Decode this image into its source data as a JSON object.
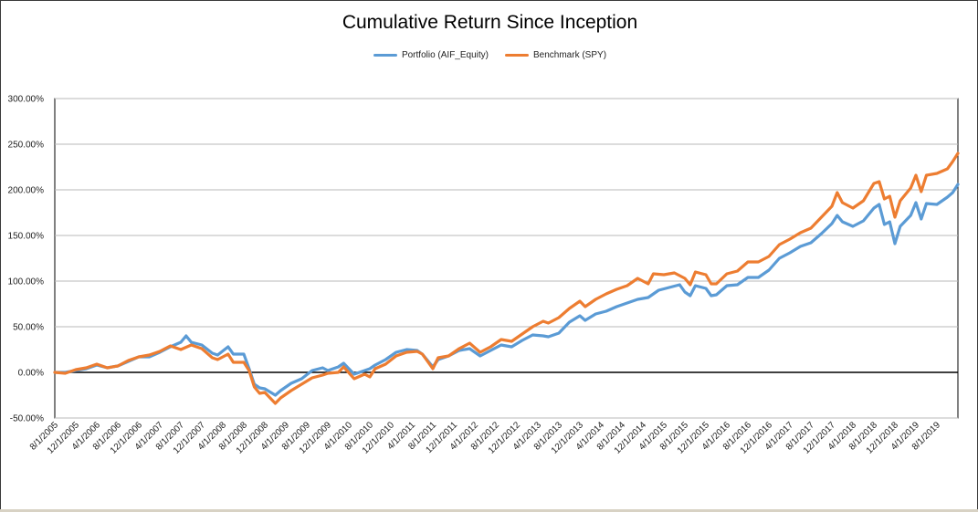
{
  "chart_data": {
    "type": "line",
    "title": "Cumulative Return Since Inception",
    "xlabel": "",
    "ylabel": "",
    "ylim": [
      -50,
      300
    ],
    "y_ticks": [
      300,
      250,
      200,
      150,
      100,
      50,
      0,
      -50
    ],
    "y_tick_labels": [
      "300.00%",
      "250.00%",
      "200.00%",
      "150.00%",
      "100.00%",
      "50.00%",
      "0.00%",
      "-50.00%"
    ],
    "x_start": "2005-08",
    "x_end": "2019-12",
    "x_tick_labels": [
      "8/1/2005",
      "12/1/2005",
      "4/1/2006",
      "8/1/2006",
      "12/1/2006",
      "4/1/2007",
      "8/1/2007",
      "12/1/2007",
      "4/1/2008",
      "8/1/2008",
      "12/1/2008",
      "4/1/2009",
      "8/1/2009",
      "12/1/2009",
      "4/1/2010",
      "8/1/2010",
      "12/1/2010",
      "4/1/2011",
      "8/1/2011",
      "12/1/2011",
      "4/1/2012",
      "8/1/2012",
      "12/1/2012",
      "4/1/2013",
      "8/1/2013",
      "12/1/2013",
      "4/1/2014",
      "8/1/2014",
      "12/1/2014",
      "4/1/2015",
      "8/1/2015",
      "12/1/2015",
      "4/1/2016",
      "8/1/2016",
      "12/1/2016",
      "4/1/2017",
      "8/1/2017",
      "12/1/2017",
      "4/1/2018",
      "8/1/2018",
      "12/1/2018",
      "4/1/2019",
      "8/1/2019"
    ],
    "legend_position": "top",
    "grid": true,
    "series": [
      {
        "name": "Portfolio (AIF_Equity)",
        "color": "#5b9bd5",
        "points": [
          [
            "2005-08",
            0
          ],
          [
            "2005-10",
            0
          ],
          [
            "2005-12",
            2
          ],
          [
            "2006-02",
            4
          ],
          [
            "2006-04",
            8
          ],
          [
            "2006-06",
            5
          ],
          [
            "2006-08",
            7
          ],
          [
            "2006-10",
            12
          ],
          [
            "2006-12",
            17
          ],
          [
            "2007-02",
            17
          ],
          [
            "2007-04",
            22
          ],
          [
            "2007-06",
            28
          ],
          [
            "2007-08",
            33
          ],
          [
            "2007-09",
            40
          ],
          [
            "2007-10",
            33
          ],
          [
            "2007-12",
            30
          ],
          [
            "2008-02",
            21
          ],
          [
            "2008-03",
            19
          ],
          [
            "2008-05",
            28
          ],
          [
            "2008-06",
            20
          ],
          [
            "2008-08",
            20
          ],
          [
            "2008-09",
            4
          ],
          [
            "2008-10",
            -13
          ],
          [
            "2008-11",
            -17
          ],
          [
            "2008-12",
            -18
          ],
          [
            "2009-02",
            -25
          ],
          [
            "2009-03",
            -20
          ],
          [
            "2009-05",
            -12
          ],
          [
            "2009-07",
            -7
          ],
          [
            "2009-09",
            2
          ],
          [
            "2009-11",
            5
          ],
          [
            "2009-12",
            2
          ],
          [
            "2010-02",
            6
          ],
          [
            "2010-03",
            10
          ],
          [
            "2010-05",
            -2
          ],
          [
            "2010-07",
            2
          ],
          [
            "2010-08",
            4
          ],
          [
            "2010-09",
            8
          ],
          [
            "2010-11",
            14
          ],
          [
            "2011-01",
            22
          ],
          [
            "2011-03",
            25
          ],
          [
            "2011-05",
            24
          ],
          [
            "2011-06",
            20
          ],
          [
            "2011-08",
            6
          ],
          [
            "2011-09",
            14
          ],
          [
            "2011-11",
            18
          ],
          [
            "2012-01",
            24
          ],
          [
            "2012-03",
            26
          ],
          [
            "2012-05",
            18
          ],
          [
            "2012-07",
            24
          ],
          [
            "2012-09",
            30
          ],
          [
            "2012-11",
            28
          ],
          [
            "2013-01",
            35
          ],
          [
            "2013-03",
            41
          ],
          [
            "2013-05",
            40
          ],
          [
            "2013-06",
            39
          ],
          [
            "2013-08",
            43
          ],
          [
            "2013-10",
            55
          ],
          [
            "2013-12",
            62
          ],
          [
            "2014-01",
            57
          ],
          [
            "2014-03",
            64
          ],
          [
            "2014-05",
            67
          ],
          [
            "2014-07",
            72
          ],
          [
            "2014-09",
            76
          ],
          [
            "2014-11",
            80
          ],
          [
            "2015-01",
            82
          ],
          [
            "2015-03",
            90
          ],
          [
            "2015-05",
            93
          ],
          [
            "2015-07",
            96
          ],
          [
            "2015-08",
            88
          ],
          [
            "2015-09",
            84
          ],
          [
            "2015-10",
            95
          ],
          [
            "2015-12",
            92
          ],
          [
            "2016-01",
            84
          ],
          [
            "2016-02",
            85
          ],
          [
            "2016-04",
            95
          ],
          [
            "2016-06",
            96
          ],
          [
            "2016-08",
            104
          ],
          [
            "2016-10",
            104
          ],
          [
            "2016-12",
            112
          ],
          [
            "2017-02",
            125
          ],
          [
            "2017-04",
            131
          ],
          [
            "2017-06",
            138
          ],
          [
            "2017-08",
            142
          ],
          [
            "2017-10",
            152
          ],
          [
            "2017-12",
            163
          ],
          [
            "2018-01",
            172
          ],
          [
            "2018-02",
            165
          ],
          [
            "2018-04",
            160
          ],
          [
            "2018-06",
            166
          ],
          [
            "2018-08",
            180
          ],
          [
            "2018-09",
            184
          ],
          [
            "2018-10",
            162
          ],
          [
            "2018-11",
            165
          ],
          [
            "2018-12",
            141
          ],
          [
            "2019-01",
            160
          ],
          [
            "2019-03",
            172
          ],
          [
            "2019-04",
            186
          ],
          [
            "2019-05",
            168
          ],
          [
            "2019-06",
            185
          ],
          [
            "2019-08",
            184
          ],
          [
            "2019-10",
            192
          ],
          [
            "2019-11",
            197
          ],
          [
            "2019-12",
            206
          ]
        ]
      },
      {
        "name": "Benchmark (SPY)",
        "color": "#ed7d31",
        "points": [
          [
            "2005-08",
            0
          ],
          [
            "2005-10",
            -1
          ],
          [
            "2005-12",
            3
          ],
          [
            "2006-02",
            5
          ],
          [
            "2006-04",
            9
          ],
          [
            "2006-06",
            5
          ],
          [
            "2006-08",
            7
          ],
          [
            "2006-10",
            13
          ],
          [
            "2006-12",
            17
          ],
          [
            "2007-02",
            19
          ],
          [
            "2007-04",
            23
          ],
          [
            "2007-06",
            29
          ],
          [
            "2007-08",
            25
          ],
          [
            "2007-10",
            30
          ],
          [
            "2007-12",
            26
          ],
          [
            "2008-02",
            16
          ],
          [
            "2008-03",
            14
          ],
          [
            "2008-05",
            20
          ],
          [
            "2008-06",
            11
          ],
          [
            "2008-08",
            11
          ],
          [
            "2008-09",
            2
          ],
          [
            "2008-10",
            -16
          ],
          [
            "2008-11",
            -23
          ],
          [
            "2008-12",
            -22
          ],
          [
            "2009-02",
            -34
          ],
          [
            "2009-03",
            -28
          ],
          [
            "2009-05",
            -20
          ],
          [
            "2009-07",
            -13
          ],
          [
            "2009-09",
            -6
          ],
          [
            "2009-11",
            -3
          ],
          [
            "2009-12",
            -1
          ],
          [
            "2010-02",
            0
          ],
          [
            "2010-03",
            6
          ],
          [
            "2010-05",
            -7
          ],
          [
            "2010-07",
            -2
          ],
          [
            "2010-08",
            -5
          ],
          [
            "2010-09",
            4
          ],
          [
            "2010-11",
            9
          ],
          [
            "2011-01",
            18
          ],
          [
            "2011-03",
            22
          ],
          [
            "2011-05",
            23
          ],
          [
            "2011-06",
            20
          ],
          [
            "2011-08",
            4
          ],
          [
            "2011-09",
            16
          ],
          [
            "2011-11",
            18
          ],
          [
            "2012-01",
            26
          ],
          [
            "2012-03",
            32
          ],
          [
            "2012-05",
            22
          ],
          [
            "2012-07",
            28
          ],
          [
            "2012-09",
            36
          ],
          [
            "2012-11",
            34
          ],
          [
            "2013-01",
            42
          ],
          [
            "2013-03",
            50
          ],
          [
            "2013-05",
            56
          ],
          [
            "2013-06",
            54
          ],
          [
            "2013-08",
            60
          ],
          [
            "2013-10",
            70
          ],
          [
            "2013-12",
            78
          ],
          [
            "2014-01",
            72
          ],
          [
            "2014-03",
            80
          ],
          [
            "2014-05",
            86
          ],
          [
            "2014-07",
            91
          ],
          [
            "2014-09",
            95
          ],
          [
            "2014-11",
            103
          ],
          [
            "2015-01",
            97
          ],
          [
            "2015-02",
            108
          ],
          [
            "2015-04",
            107
          ],
          [
            "2015-06",
            109
          ],
          [
            "2015-08",
            103
          ],
          [
            "2015-09",
            96
          ],
          [
            "2015-10",
            110
          ],
          [
            "2015-12",
            107
          ],
          [
            "2016-01",
            97
          ],
          [
            "2016-02",
            97
          ],
          [
            "2016-04",
            108
          ],
          [
            "2016-06",
            111
          ],
          [
            "2016-08",
            121
          ],
          [
            "2016-10",
            121
          ],
          [
            "2016-12",
            127
          ],
          [
            "2017-02",
            140
          ],
          [
            "2017-04",
            146
          ],
          [
            "2017-06",
            153
          ],
          [
            "2017-08",
            158
          ],
          [
            "2017-10",
            170
          ],
          [
            "2017-12",
            182
          ],
          [
            "2018-01",
            197
          ],
          [
            "2018-02",
            186
          ],
          [
            "2018-04",
            180
          ],
          [
            "2018-06",
            188
          ],
          [
            "2018-08",
            207
          ],
          [
            "2018-09",
            209
          ],
          [
            "2018-10",
            190
          ],
          [
            "2018-11",
            193
          ],
          [
            "2018-12",
            170
          ],
          [
            "2019-01",
            188
          ],
          [
            "2019-03",
            202
          ],
          [
            "2019-04",
            216
          ],
          [
            "2019-05",
            198
          ],
          [
            "2019-06",
            216
          ],
          [
            "2019-08",
            218
          ],
          [
            "2019-10",
            223
          ],
          [
            "2019-11",
            231
          ],
          [
            "2019-12",
            240
          ]
        ]
      }
    ]
  }
}
